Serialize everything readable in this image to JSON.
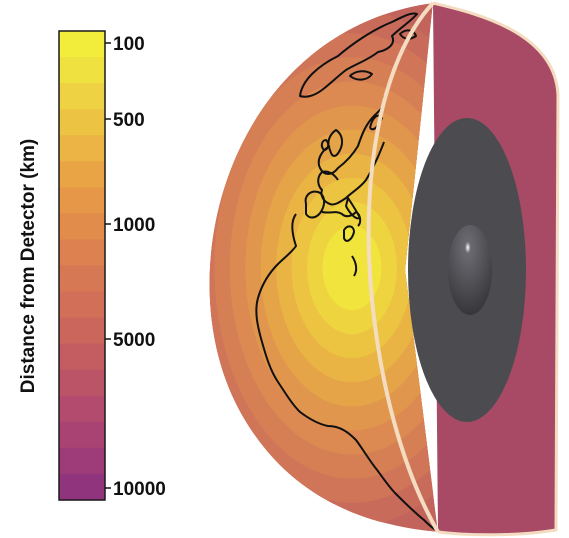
{
  "colorbar": {
    "axis_label": "Distance from Detector  (km)",
    "tick_labels": [
      "100",
      "500",
      "1000",
      "5000",
      "10000"
    ],
    "colors": [
      "#f2ec3a",
      "#efe13f",
      "#eed243",
      "#edc344",
      "#ebb444",
      "#e9a545",
      "#e69848",
      "#e28c4c",
      "#dd8151",
      "#d77855",
      "#d16f59",
      "#cb665d",
      "#c45d62",
      "#bb5467",
      "#b24b6d",
      "#a84373",
      "#9d3c78",
      "#8f347d"
    ]
  },
  "earth": {
    "cutaway_face_color": "#a84a65",
    "rim_color": "#f3dcc0",
    "outer_core_color": "#4c4c50",
    "inner_core_color": "#3a3a3e",
    "surface_colors": [
      "#c2645c",
      "#c96b5a",
      "#d07558",
      "#d67f55",
      "#dc8a52",
      "#e1964d",
      "#e5a448",
      "#e9b444",
      "#ecc441",
      "#eed53f",
      "#f0e43d"
    ]
  }
}
